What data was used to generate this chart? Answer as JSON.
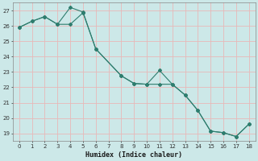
{
  "xlabel": "Humidex (Indice chaleur)",
  "line1_x": [
    0,
    1,
    2,
    3,
    4,
    5,
    6,
    8,
    9,
    10,
    11,
    12,
    13,
    14,
    15,
    16,
    17,
    18
  ],
  "line1_y": [
    25.9,
    26.3,
    26.6,
    26.1,
    26.1,
    26.85,
    24.5,
    22.75,
    22.25,
    22.2,
    23.1,
    22.2,
    21.5,
    20.5,
    19.15,
    19.05,
    18.8,
    19.6
  ],
  "line2_x": [
    0,
    1,
    2,
    3,
    4,
    5,
    6,
    8,
    9,
    10,
    11,
    12,
    13,
    14,
    15,
    16,
    17,
    18
  ],
  "line2_y": [
    25.9,
    26.3,
    26.6,
    26.1,
    27.2,
    26.9,
    24.5,
    22.75,
    22.25,
    22.2,
    22.2,
    22.2,
    21.5,
    20.5,
    19.15,
    19.05,
    18.8,
    19.6
  ],
  "line_color": "#2e7d6e",
  "bg_color": "#cce8e8",
  "grid_color": "#e8b8b8",
  "ylim": [
    18.5,
    27.5
  ],
  "xlim": [
    -0.5,
    18.5
  ],
  "yticks": [
    19,
    20,
    21,
    22,
    23,
    24,
    25,
    26,
    27
  ],
  "xticks": [
    0,
    1,
    2,
    3,
    4,
    5,
    6,
    7,
    8,
    9,
    10,
    11,
    12,
    13,
    14,
    15,
    16,
    17,
    18
  ]
}
